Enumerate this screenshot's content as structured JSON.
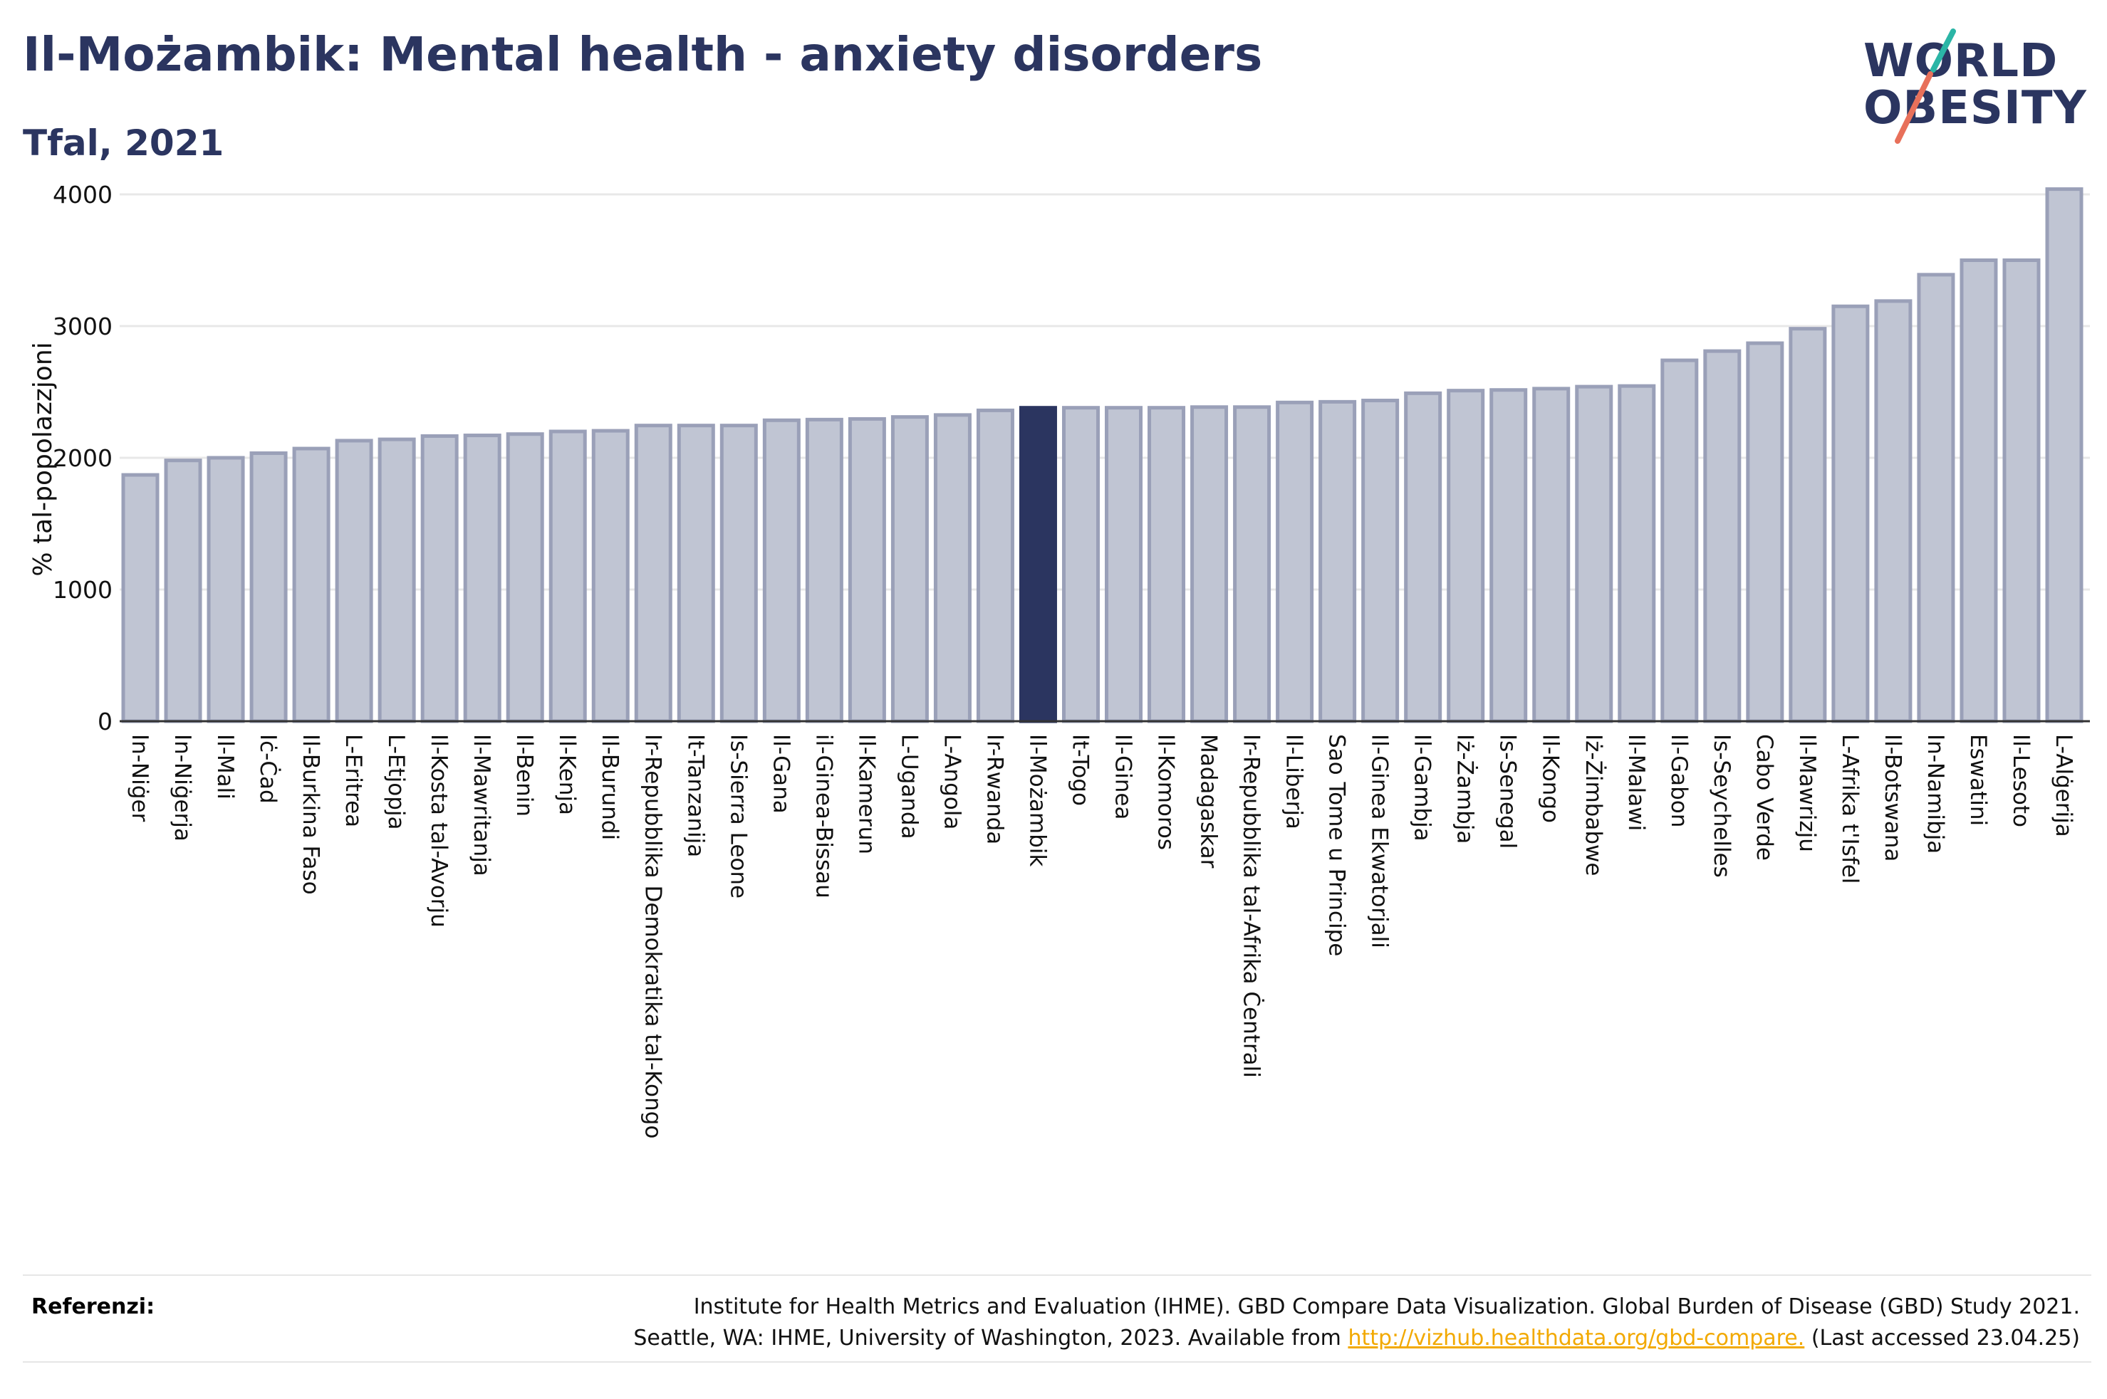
{
  "header": {
    "title": "Il-Możambik: Mental health - anxiety disorders",
    "subtitle": "Tfal, 2021"
  },
  "logo": {
    "line1": "WORLD",
    "line2": "OBESITY",
    "colors": {
      "text": "#2b3560",
      "slash_top": "#2bb5a6",
      "slash_bottom": "#e8705a"
    }
  },
  "colors": {
    "bar": "#c0c5d3",
    "bar_border": "#9aa0b8",
    "highlight": "#2b3560"
  },
  "chart_data": {
    "type": "bar",
    "title": "",
    "xlabel": "",
    "ylabel": "% tal-popolazzjoni",
    "ylim": [
      0,
      4050
    ],
    "yticks": [
      0,
      1000,
      2000,
      3000,
      4000
    ],
    "grid": true,
    "highlight": "Il-Możambik",
    "categories": [
      "In-Niġer",
      "In-Niġerja",
      "Il-Mali",
      "Iċ-Ċad",
      "Il-Burkina Faso",
      "L-Eritrea",
      "L-Etjopja",
      "Il-Kosta tal-Avorju",
      "Il-Mawritanja",
      "Il-Benin",
      "Il-Kenja",
      "Il-Burundi",
      "Ir-Repubblika Demokratika tal-Kongo",
      "It-Tanzanija",
      "Is-Sierra Leone",
      "Il-Gana",
      "il-Ginea-Bissau",
      "Il-Kamerun",
      "L-Uganda",
      "L-Angola",
      "Ir-Rwanda",
      "Il-Możambik",
      "It-Togo",
      "Il-Ginea",
      "Il-Komoros",
      "Madagaskar",
      "Ir-Repubblika tal-Afrika Ċentrali",
      "Il-Liberja",
      "Sao Tome u Principe",
      "Il-Ginea Ekwatorjali",
      "Il-Gambja",
      "Iż-Żambja",
      "Is-Senegal",
      "Il-Kongo",
      "Iż-Żimbabwe",
      "Il-Malawi",
      "Il-Gabon",
      "Is-Seychelles",
      "Cabo Verde",
      "Il-Mawrizju",
      "L-Afrika t'Isfel",
      "Il-Botswana",
      "In-Namibja",
      "Eswatini",
      "Il-Lesoto",
      "L-Alġerija"
    ],
    "values": [
      1870,
      1980,
      2000,
      2035,
      2070,
      2130,
      2140,
      2165,
      2170,
      2180,
      2200,
      2205,
      2245,
      2245,
      2245,
      2285,
      2290,
      2295,
      2310,
      2325,
      2360,
      2380,
      2380,
      2380,
      2380,
      2385,
      2385,
      2420,
      2425,
      2435,
      2490,
      2510,
      2515,
      2525,
      2540,
      2545,
      2740,
      2810,
      2870,
      2980,
      3150,
      3190,
      3390,
      3500,
      3500,
      4040
    ]
  },
  "footer": {
    "ref_label": "Referenzi:",
    "ref_line1": "Institute for Health Metrics and Evaluation (IHME). GBD Compare Data Visualization. Global Burden of Disease (GBD) Study 2021.",
    "ref_line2_pre": "Seattle, WA: IHME, University of Washington, 2023. Available from ",
    "ref_link": "http://vizhub.healthdata.org/gbd-compare.",
    "ref_line2_post": " (Last accessed 23.04.25)"
  }
}
